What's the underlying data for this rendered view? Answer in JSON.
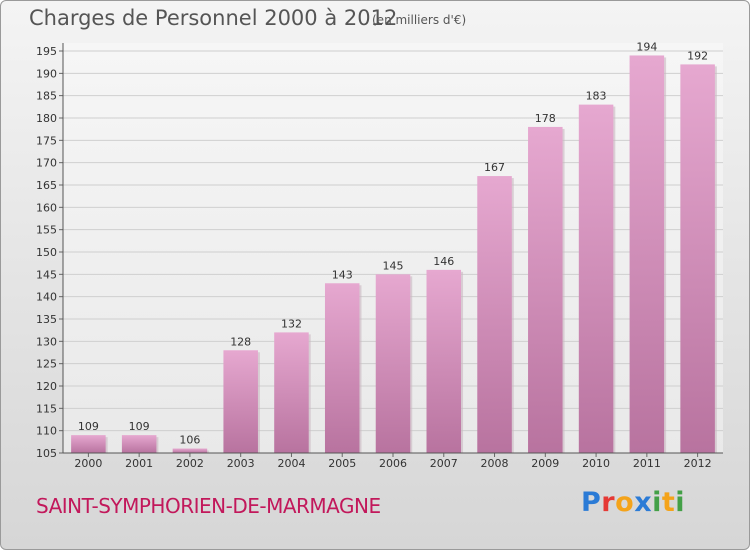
{
  "title": "Charges de Personnel 2000 à 2012",
  "unit_note": "(en milliers d'€)",
  "city": "SAINT-SYMPHORIEN-DE-MARMAGNE",
  "logo": {
    "text": "Proxiti",
    "letters": [
      "P",
      "r",
      "o",
      "x",
      "i",
      "t",
      "i"
    ],
    "colors": [
      "#2b7bd6",
      "#e53935",
      "#f4a31a",
      "#2b7bd6",
      "#43a047",
      "#f4a31a",
      "#43a047"
    ]
  },
  "colors": {
    "bar_top": "#e6a8d0",
    "bar_bottom": "#b8739f",
    "city": "#c2185b"
  },
  "chart_data": {
    "type": "bar",
    "categories": [
      "2000",
      "2001",
      "2002",
      "2003",
      "2004",
      "2005",
      "2006",
      "2007",
      "2008",
      "2009",
      "2010",
      "2011",
      "2012"
    ],
    "values": [
      109,
      109,
      106,
      128,
      132,
      143,
      145,
      146,
      167,
      178,
      183,
      194,
      192
    ],
    "ylim": [
      105,
      195
    ],
    "yticks": [
      105,
      110,
      115,
      120,
      125,
      130,
      135,
      140,
      145,
      150,
      155,
      160,
      165,
      170,
      175,
      180,
      185,
      190,
      195
    ],
    "grid": true,
    "xlabel": "",
    "ylabel": ""
  }
}
